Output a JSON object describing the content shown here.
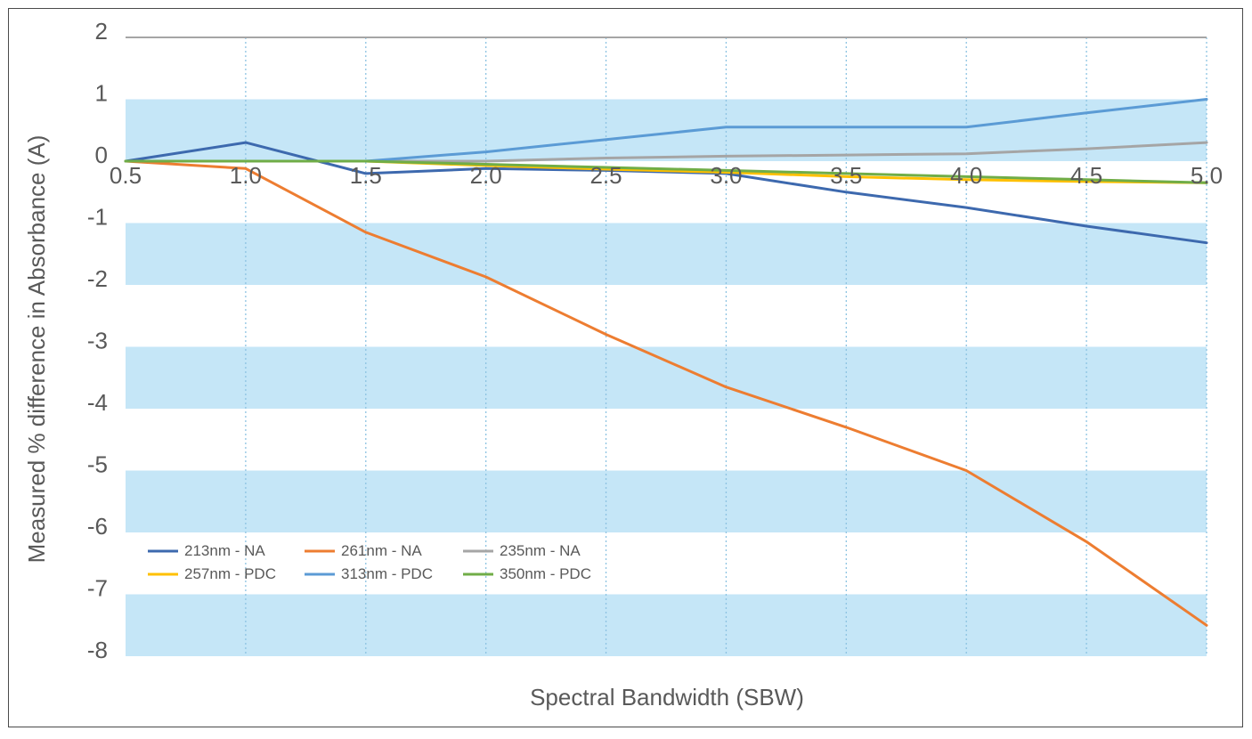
{
  "chart_data": {
    "type": "line",
    "title": "",
    "xlabel": "Spectral Bandwidth (SBW)",
    "ylabel": "Measured % difference in Absorbance (A)",
    "x": [
      0.5,
      1.0,
      1.5,
      2.0,
      2.5,
      3.0,
      3.5,
      4.0,
      4.5,
      5.0
    ],
    "x_ticks": [
      "0.5",
      "1.0",
      "1.5",
      "2.0",
      "2.5",
      "3.0",
      "3.5",
      "4.0",
      "4.5",
      "5.0"
    ],
    "y_ticks": [
      "2",
      "1",
      "0",
      "-1",
      "-2",
      "-3",
      "-4",
      "-5",
      "-6",
      "-7",
      "-8"
    ],
    "xlim": [
      0.5,
      5.0
    ],
    "ylim": [
      -8,
      2
    ],
    "grid": "vertical dotted",
    "background_bands": "alternating light-blue horizontal bands",
    "legend_position": "bottom-left",
    "series": [
      {
        "name": "213nm - NA",
        "color": "#3D69AE",
        "values": [
          0,
          0.3,
          -0.2,
          -0.12,
          -0.15,
          -0.2,
          -0.5,
          -0.75,
          -1.05,
          -1.32
        ]
      },
      {
        "name": "261nm - NA",
        "color": "#ED7D31",
        "values": [
          0,
          -0.12,
          -1.15,
          -1.87,
          -2.8,
          -3.65,
          -4.3,
          -5.0,
          -6.15,
          -7.5
        ]
      },
      {
        "name": "235nm - NA",
        "color": "#A5A5A5",
        "values": [
          0,
          0.0,
          0.0,
          0.0,
          0.05,
          0.08,
          0.1,
          0.12,
          0.2,
          0.3
        ]
      },
      {
        "name": "257nm - PDC",
        "color": "#FFC000",
        "values": [
          0,
          0.0,
          0.0,
          -0.07,
          -0.13,
          -0.18,
          -0.25,
          -0.3,
          -0.33,
          -0.35
        ]
      },
      {
        "name": "313nm - PDC",
        "color": "#5B9BD5",
        "values": [
          0,
          0.0,
          0.0,
          0.15,
          0.35,
          0.55,
          0.55,
          0.55,
          0.78,
          1.0
        ]
      },
      {
        "name": "350nm - PDC",
        "color": "#70AD47",
        "values": [
          0,
          0.0,
          0.0,
          -0.05,
          -0.1,
          -0.15,
          -0.2,
          -0.25,
          -0.3,
          -0.35
        ]
      }
    ],
    "colors": {
      "band": "#C5E6F7",
      "grid": "#8DC3E2",
      "top_line": "#A5A5A5",
      "text": "#595959"
    }
  }
}
